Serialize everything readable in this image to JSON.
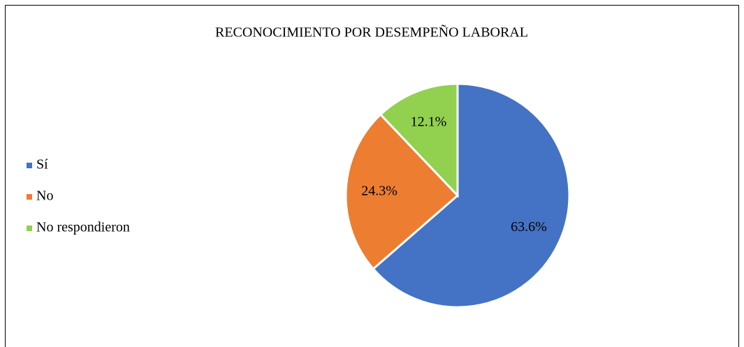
{
  "chart_data": {
    "type": "pie",
    "title": "RECONOCIMIENTO POR DESEMPEÑO LABORAL",
    "categories": [
      "Sí",
      "No",
      "No respondieron"
    ],
    "values": [
      63.6,
      24.3,
      12.1
    ],
    "value_labels": [
      "63.6%",
      "24.3%",
      "12.1%"
    ],
    "colors": [
      "#4472c4",
      "#ed7d31",
      "#92d050"
    ],
    "legend": "left"
  }
}
